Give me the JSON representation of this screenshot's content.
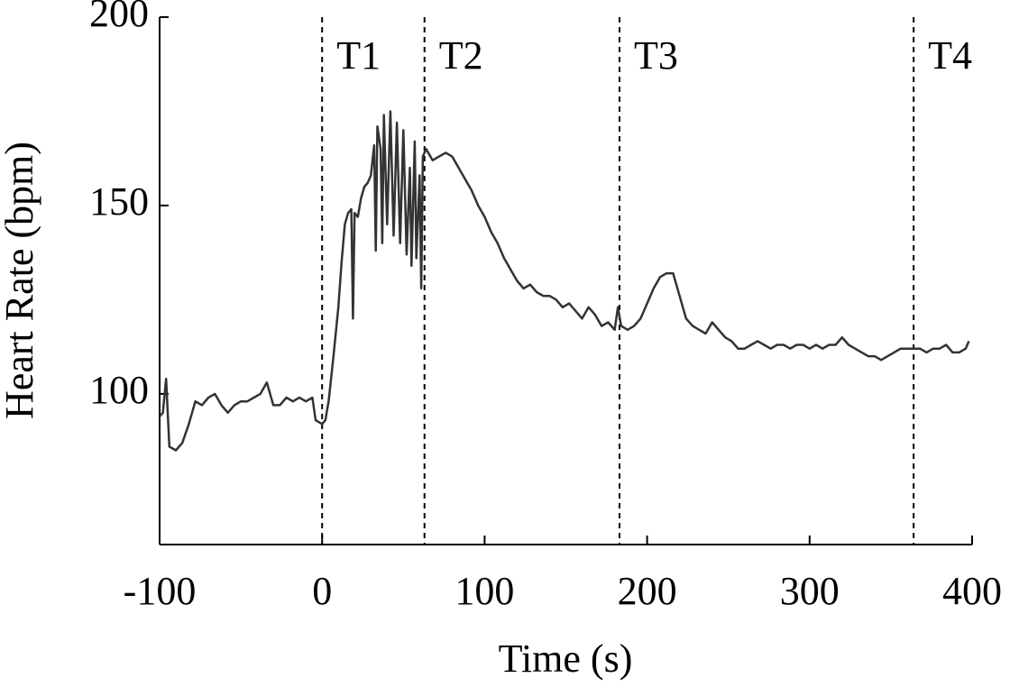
{
  "chart_data": {
    "type": "line",
    "x_label": "Time (s)",
    "y_label": "Heart Rate (bpm)",
    "x": [
      -100,
      -98,
      -96,
      -94,
      -90,
      -86,
      -82,
      -78,
      -74,
      -70,
      -66,
      -62,
      -58,
      -54,
      -50,
      -46,
      -42,
      -38,
      -34,
      -30,
      -26,
      -22,
      -18,
      -14,
      -10,
      -6,
      -4,
      0,
      2,
      4,
      7,
      10,
      12,
      14,
      16,
      18,
      19,
      20,
      22,
      24,
      26,
      28,
      30,
      32,
      33,
      34,
      36,
      37,
      38,
      40,
      42,
      44,
      46,
      48,
      50,
      52,
      54,
      55,
      57,
      58,
      60,
      61,
      62,
      64,
      68,
      72,
      76,
      80,
      84,
      88,
      92,
      96,
      100,
      104,
      108,
      112,
      116,
      120,
      124,
      128,
      132,
      136,
      140,
      144,
      148,
      152,
      156,
      160,
      164,
      168,
      172,
      176,
      180,
      182,
      184,
      188,
      192,
      196,
      200,
      204,
      208,
      212,
      216,
      220,
      224,
      228,
      232,
      236,
      240,
      244,
      248,
      252,
      256,
      260,
      264,
      268,
      272,
      276,
      280,
      284,
      288,
      292,
      296,
      300,
      304,
      308,
      312,
      316,
      320,
      324,
      328,
      332,
      336,
      340,
      344,
      348,
      352,
      356,
      360,
      364,
      368,
      372,
      376,
      380,
      384,
      388,
      392,
      396,
      398
    ],
    "values": [
      94,
      95,
      104,
      86,
      85,
      87,
      92,
      98,
      97,
      99,
      100,
      97,
      95,
      97,
      98,
      98,
      99,
      100,
      103,
      97,
      97,
      99,
      98,
      99,
      98,
      99,
      93,
      92,
      93,
      98,
      110,
      123,
      135,
      145,
      148,
      149,
      120,
      148,
      147,
      152,
      155,
      156,
      158,
      166,
      138,
      171,
      165,
      140,
      174,
      145,
      175,
      142,
      172,
      140,
      170,
      137,
      160,
      134,
      167,
      136,
      158,
      128,
      163,
      165,
      162,
      163,
      164,
      163,
      160,
      157,
      154,
      150,
      147,
      143,
      140,
      136,
      133,
      130,
      128,
      129,
      127,
      126,
      126,
      125,
      123,
      124,
      122,
      120,
      123,
      121,
      118,
      119,
      117,
      123,
      118,
      117,
      118,
      120,
      124,
      128,
      131,
      132,
      132,
      126,
      120,
      118,
      117,
      116,
      119,
      117,
      115,
      114,
      112,
      112,
      113,
      114,
      113,
      112,
      113,
      113,
      112,
      113,
      113,
      112,
      113,
      112,
      113,
      113,
      115,
      113,
      112,
      111,
      110,
      110,
      109,
      110,
      111,
      112,
      112,
      112,
      112,
      111,
      112,
      112,
      113,
      111,
      111,
      112,
      114
    ],
    "color": "#333333",
    "xlim": [
      -100,
      400
    ],
    "xticks": [
      -100,
      0,
      100,
      200,
      300,
      400
    ],
    "ylim": [
      60,
      200
    ],
    "yticks": [
      100,
      150,
      200
    ],
    "events": [
      {
        "x": 0,
        "label": "T1"
      },
      {
        "x": 63,
        "label": "T2"
      },
      {
        "x": 183,
        "label": "T3"
      },
      {
        "x": 364,
        "label": "T4"
      }
    ]
  }
}
